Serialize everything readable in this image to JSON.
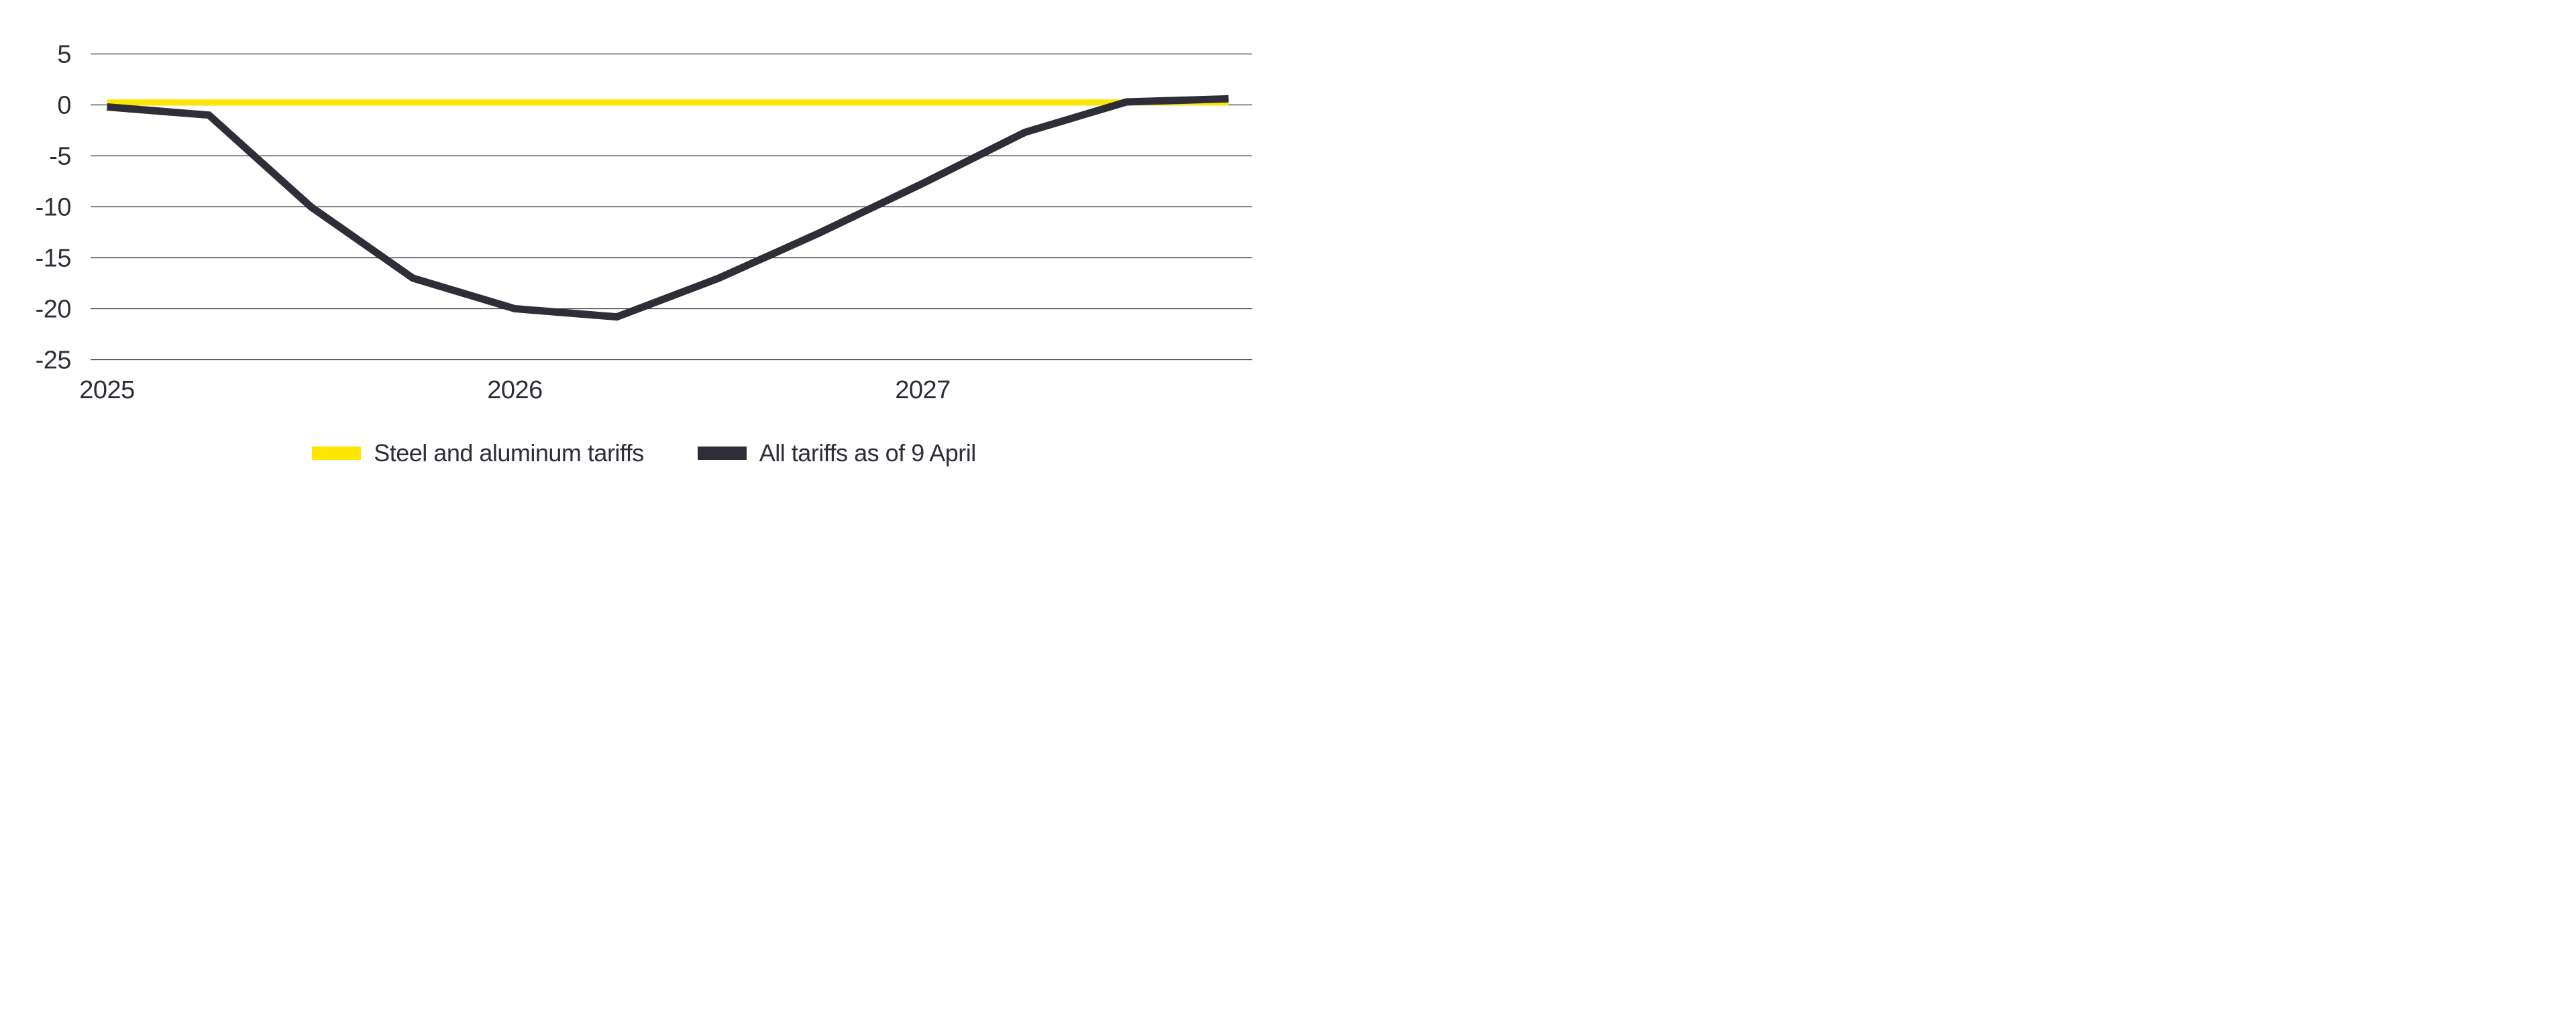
{
  "page": {
    "background": "#ffffff"
  },
  "chart_data": {
    "type": "line",
    "title": "",
    "xlabel": "",
    "ylabel": "",
    "grid": "horizontal",
    "legend_position": "bottom-center",
    "x": [
      "2025 Q1",
      "2025 Q2",
      "2025 Q3",
      "2025 Q4",
      "2026 Q1",
      "2026 Q2",
      "2026 Q3",
      "2026 Q4",
      "2027 Q1",
      "2027 Q2",
      "2027 Q3",
      "2027 Q4"
    ],
    "x_axis_labels": [
      {
        "label": "2025",
        "quarter_index": 0
      },
      {
        "label": "2026",
        "quarter_index": 4
      },
      {
        "label": "2027",
        "quarter_index": 8
      }
    ],
    "y_ticks": [
      5,
      0,
      -5,
      -10,
      -15,
      -20,
      -25
    ],
    "ylim": [
      -25,
      5
    ],
    "axis_text_color": "#2e2e38",
    "gridline_color": "#2e2e38",
    "series": [
      {
        "name": "Steel and aluminum tariffs",
        "color": "#ffe600",
        "values": [
          0.25,
          0.25,
          0.25,
          0.25,
          0.25,
          0.25,
          0.25,
          0.25,
          0.25,
          0.25,
          0.25,
          0.25
        ]
      },
      {
        "name": "All tariffs as of 9 April",
        "color": "#2e2e38",
        "values": [
          -0.2,
          -1,
          -10,
          -17,
          -20,
          -20.8,
          -17,
          -12.5,
          -7.7,
          -2.7,
          0.3,
          0.6
        ]
      }
    ]
  }
}
